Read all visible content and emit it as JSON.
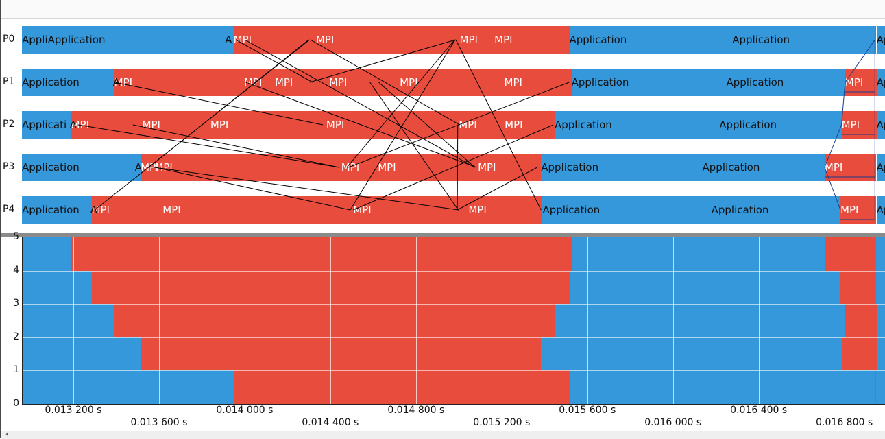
{
  "colors": {
    "application": "#3498db",
    "mpi": "#e74c3c",
    "message_line": "#000000",
    "grid": "#ffffff"
  },
  "timeline": {
    "t_start": 0.01296,
    "t_end": 0.01699,
    "ranks": [
      {
        "label": "P0",
        "segments": [
          {
            "s": 0.01296,
            "e": 0.013948,
            "k": "application",
            "text": "AppliApplication"
          },
          {
            "s": 0.013948,
            "e": 0.015516,
            "k": "mpi",
            "text": "MPI"
          },
          {
            "s": 0.015516,
            "e": 0.016943,
            "k": "application",
            "text": "Application"
          },
          {
            "s": 0.016943,
            "e": 0.01695,
            "k": "mpi",
            "text": ""
          },
          {
            "s": 0.01695,
            "e": 0.01699,
            "k": "application",
            "text": "App"
          }
        ]
      },
      {
        "label": "P1",
        "segments": [
          {
            "s": 0.01296,
            "e": 0.013391,
            "k": "application",
            "text": "Application"
          },
          {
            "s": 0.013391,
            "e": 0.015526,
            "k": "mpi",
            "text": "MPI"
          },
          {
            "s": 0.015526,
            "e": 0.016804,
            "k": "application",
            "text": "Application"
          },
          {
            "s": 0.016804,
            "e": 0.01695,
            "k": "mpi",
            "text": "MPI"
          },
          {
            "s": 0.01695,
            "e": 0.01699,
            "k": "application",
            "text": "App"
          }
        ]
      },
      {
        "label": "P2",
        "segments": [
          {
            "s": 0.01296,
            "e": 0.013189,
            "k": "application",
            "text": "Applicati"
          },
          {
            "s": 0.013189,
            "e": 0.015447,
            "k": "mpi",
            "text": "MPI"
          },
          {
            "s": 0.015447,
            "e": 0.016787,
            "k": "application",
            "text": "Application"
          },
          {
            "s": 0.016787,
            "e": 0.01695,
            "k": "mpi",
            "text": "MPI"
          },
          {
            "s": 0.01695,
            "e": 0.01699,
            "k": "application",
            "text": "App"
          }
        ]
      },
      {
        "label": "P3",
        "segments": [
          {
            "s": 0.01296,
            "e": 0.013514,
            "k": "application",
            "text": "Application"
          },
          {
            "s": 0.013514,
            "e": 0.015384,
            "k": "mpi",
            "text": "MPI"
          },
          {
            "s": 0.015384,
            "e": 0.016708,
            "k": "application",
            "text": "Application"
          },
          {
            "s": 0.016708,
            "e": 0.01695,
            "k": "mpi",
            "text": "MPI"
          },
          {
            "s": 0.01695,
            "e": 0.01699,
            "k": "application",
            "text": "App"
          }
        ]
      },
      {
        "label": "P4",
        "segments": [
          {
            "s": 0.01296,
            "e": 0.013285,
            "k": "application",
            "text": "Application"
          },
          {
            "s": 0.013285,
            "e": 0.015391,
            "k": "mpi",
            "text": "MPI"
          },
          {
            "s": 0.015391,
            "e": 0.016782,
            "k": "application",
            "text": "Application"
          },
          {
            "s": 0.016782,
            "e": 0.01695,
            "k": "mpi",
            "text": "MPI"
          },
          {
            "s": 0.01695,
            "e": 0.01699,
            "k": "application",
            "text": "App"
          }
        ]
      }
    ],
    "mpi_labels": [
      {
        "rank": 0,
        "t": 0.014333,
        "text": "MPI"
      },
      {
        "rank": 0,
        "t": 0.015004,
        "text": "MPI"
      },
      {
        "rank": 0,
        "t": 0.015166,
        "text": "MPI"
      },
      {
        "rank": 1,
        "t": 0.013997,
        "text": "MPI"
      },
      {
        "rank": 1,
        "t": 0.014141,
        "text": "MPI"
      },
      {
        "rank": 1,
        "t": 0.014394,
        "text": "MPI"
      },
      {
        "rank": 1,
        "t": 0.014724,
        "text": "MPI"
      },
      {
        "rank": 1,
        "t": 0.015212,
        "text": "MPI"
      },
      {
        "rank": 2,
        "t": 0.013522,
        "text": "MPI"
      },
      {
        "rank": 2,
        "t": 0.01384,
        "text": "MPI"
      },
      {
        "rank": 2,
        "t": 0.014381,
        "text": "MPI"
      },
      {
        "rank": 2,
        "t": 0.015,
        "text": "MPI"
      },
      {
        "rank": 2,
        "t": 0.015214,
        "text": "MPI"
      },
      {
        "rank": 3,
        "t": 0.013579,
        "text": "MPI"
      },
      {
        "rank": 3,
        "t": 0.014451,
        "text": "MPI"
      },
      {
        "rank": 3,
        "t": 0.014622,
        "text": "MPI"
      },
      {
        "rank": 3,
        "t": 0.015089,
        "text": "MPI"
      },
      {
        "rank": 4,
        "t": 0.013617,
        "text": "MPI"
      },
      {
        "rank": 4,
        "t": 0.014507,
        "text": "MPI"
      },
      {
        "rank": 4,
        "t": 0.015045,
        "text": "MPI"
      }
    ],
    "messages": [
      {
        "from": 0,
        "ts": 0.013958,
        "to": 1,
        "tr": 0.014318
      },
      {
        "from": 0,
        "ts": 0.014001,
        "to": 3,
        "tr": 0.015075
      },
      {
        "from": 0,
        "ts": 0.014299,
        "to": 3,
        "tr": 0.013552
      },
      {
        "from": 0,
        "ts": 0.014303,
        "to": 4,
        "tr": 0.0133
      },
      {
        "from": 0,
        "ts": 0.014307,
        "to": 2,
        "tr": 0.015004
      },
      {
        "from": 0,
        "ts": 0.014981,
        "to": 3,
        "tr": 0.014477
      },
      {
        "from": 0,
        "ts": 0.014983,
        "to": 4,
        "tr": 0.014493
      },
      {
        "from": 0,
        "ts": 0.014985,
        "to": 1,
        "tr": 0.014303
      },
      {
        "from": 0,
        "ts": 0.014986,
        "to": 4,
        "tr": 0.015384
      },
      {
        "from": 1,
        "ts": 0.013394,
        "to": 2,
        "tr": 0.014365
      },
      {
        "from": 1,
        "ts": 0.014005,
        "to": 3,
        "tr": 0.015083
      },
      {
        "from": 1,
        "ts": 0.014585,
        "to": 4,
        "tr": 0.014997
      },
      {
        "from": 1,
        "ts": 0.014626,
        "to": 3,
        "tr": 0.015075
      },
      {
        "from": 1,
        "ts": 0.015515,
        "to": 3,
        "tr": 0.014484
      },
      {
        "from": 2,
        "ts": 0.013222,
        "to": 3,
        "tr": 0.014443
      },
      {
        "from": 2,
        "ts": 0.013478,
        "to": 3,
        "tr": 0.014441
      },
      {
        "from": 2,
        "ts": 0.015441,
        "to": 4,
        "tr": 0.014507
      },
      {
        "from": 2,
        "ts": 0.014995,
        "to": 4,
        "tr": 0.014993
      },
      {
        "from": 3,
        "ts": 0.013582,
        "to": 4,
        "tr": 0.014493
      },
      {
        "from": 3,
        "ts": 0.013579,
        "to": 4,
        "tr": 0.014999
      },
      {
        "from": 4,
        "ts": 0.014993,
        "to": 3,
        "tr": 0.015366
      }
    ],
    "final_messages": [
      {
        "from": 3,
        "ts": 0.016708,
        "to": 4,
        "tr": 0.016782
      },
      {
        "from": 3,
        "ts": 0.016708,
        "to": 2,
        "tr": 0.016787
      },
      {
        "from": 2,
        "ts": 0.016787,
        "to": 1,
        "tr": 0.016804
      },
      {
        "from": 1,
        "ts": 0.016804,
        "to": 0,
        "tr": 0.016943
      },
      {
        "from": 3,
        "ts": 0.016708,
        "to": 3,
        "tr": 0.016943
      },
      {
        "from": 4,
        "ts": 0.016782,
        "to": 4,
        "tr": 0.016943
      },
      {
        "from": 2,
        "ts": 0.016787,
        "to": 2,
        "tr": 0.016943
      },
      {
        "from": 1,
        "ts": 0.016804,
        "to": 1,
        "tr": 0.016943
      }
    ],
    "app_labels": [
      {
        "rank": 0,
        "t": 0.016277,
        "text": "Application"
      },
      {
        "rank": 1,
        "t": 0.016249,
        "text": "Application"
      },
      {
        "rank": 2,
        "t": 0.016216,
        "text": "Application"
      },
      {
        "rank": 3,
        "t": 0.016137,
        "text": "Application"
      },
      {
        "rank": 4,
        "t": 0.016179,
        "text": "Application"
      },
      {
        "rank": 0,
        "t": 0.013908,
        "text": "A"
      },
      {
        "rank": 3,
        "t": 0.013487,
        "text": "A"
      },
      {
        "rank": 2,
        "t": 0.013183,
        "text": "A"
      },
      {
        "rank": 1,
        "t": 0.013385,
        "text": "A"
      },
      {
        "rank": 4,
        "t": 0.013279,
        "text": "A"
      }
    ]
  },
  "histogram": {
    "y_ticks": [
      "0",
      "1",
      "2",
      "3",
      "4",
      "5"
    ],
    "bands": [
      {
        "level": 0,
        "mpi_ranges": [
          [
            0.013948,
            0.015516
          ],
          [
            0.016943,
            0.01695
          ]
        ]
      },
      {
        "level": 1,
        "mpi_ranges": [
          [
            0.013514,
            0.015384
          ],
          [
            0.016787,
            0.01695
          ]
        ]
      },
      {
        "level": 2,
        "mpi_ranges": [
          [
            0.013391,
            0.015447
          ],
          [
            0.016804,
            0.01695
          ]
        ]
      },
      {
        "level": 3,
        "mpi_ranges": [
          [
            0.013285,
            0.015516
          ],
          [
            0.016782,
            0.01695
          ]
        ]
      },
      {
        "level": 4,
        "mpi_ranges": [
          [
            0.013189,
            0.015526
          ],
          [
            0.016708,
            0.01695
          ]
        ]
      }
    ]
  },
  "x_axis": {
    "ticks_top": [
      {
        "t": 0.0132,
        "label": "0.013 200 s"
      },
      {
        "t": 0.014,
        "label": "0.014 000 s"
      },
      {
        "t": 0.0148,
        "label": "0.014 800 s"
      },
      {
        "t": 0.0156,
        "label": "0.015 600 s"
      },
      {
        "t": 0.0164,
        "label": "0.016 400 s"
      }
    ],
    "ticks_bottom": [
      {
        "t": 0.0136,
        "label": "0.013 600 s"
      },
      {
        "t": 0.0144,
        "label": "0.014 400 s"
      },
      {
        "t": 0.0152,
        "label": "0.015 200 s"
      },
      {
        "t": 0.016,
        "label": "0.016 000 s"
      },
      {
        "t": 0.0168,
        "label": "0.016 800 s"
      }
    ]
  },
  "scrollbar": {
    "left_arrow": "◂"
  }
}
